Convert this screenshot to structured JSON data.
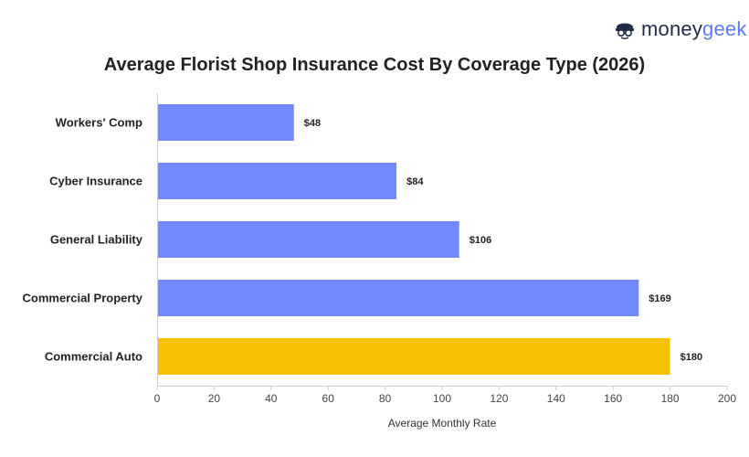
{
  "brand": {
    "logo_part1": "money",
    "logo_part2": "geek",
    "logo_icon": "geek-face-icon"
  },
  "chart_data": {
    "type": "bar",
    "orientation": "horizontal",
    "title": "Average Florist Shop Insurance Cost By Coverage Type (2026)",
    "xlabel": "Average Monthly Rate",
    "ylabel": "",
    "categories": [
      "Workers' Comp",
      "Cyber Insurance",
      "General Liability",
      "Commercial Property",
      "Commercial Auto"
    ],
    "values": [
      48,
      84,
      106,
      169,
      180
    ],
    "value_labels": [
      "$48",
      "$84",
      "$106",
      "$169",
      "$180"
    ],
    "bar_colors": [
      "#7289fb",
      "#7289fb",
      "#7289fb",
      "#7289fb",
      "#f5c000"
    ],
    "xlim": [
      0,
      200
    ],
    "x_ticks": [
      0,
      20,
      40,
      60,
      80,
      100,
      120,
      140,
      160,
      180,
      200
    ],
    "grid": false
  }
}
